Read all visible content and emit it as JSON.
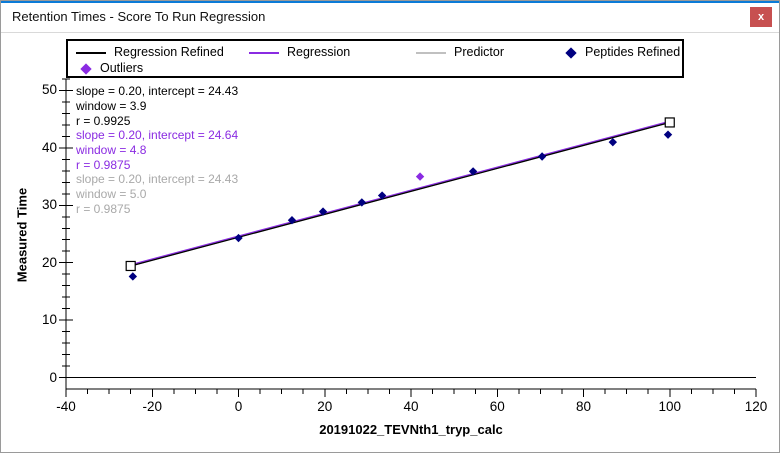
{
  "window": {
    "title": "Retention Times - Score To Run Regression",
    "close_button": "x"
  },
  "colors": {
    "accent": "#0b7bd7",
    "close_red": "#c75050",
    "window_border": "#9a9a9a",
    "regression_refined": "#000000",
    "regression": "#8a2be2",
    "predictor": "#c0c0c0",
    "peptides_refined": "#000080",
    "outliers": "#8a2be2",
    "gray_text": "#a9a9a9"
  },
  "legend": {
    "items": [
      {
        "label": "Regression Refined",
        "marker": "line",
        "color": "#000000"
      },
      {
        "label": "Regression",
        "marker": "line",
        "color": "#8a2be2"
      },
      {
        "label": "Predictor",
        "marker": "line",
        "color": "#c0c0c0"
      },
      {
        "label": "Peptides Refined",
        "marker": "diamond",
        "color": "#000080"
      },
      {
        "label": "Outliers",
        "marker": "diamond",
        "color": "#8a2be2"
      }
    ]
  },
  "annotations": [
    {
      "color": "#000000",
      "lines": [
        "slope = 0.20, intercept = 24.43",
        "window = 3.9",
        "r = 0.9925"
      ]
    },
    {
      "color": "#8a2be2",
      "lines": [
        "slope = 0.20, intercept = 24.64",
        "window = 4.8",
        "r = 0.9875"
      ]
    },
    {
      "color": "#a9a9a9",
      "lines": [
        "slope = 0.20, intercept = 24.43",
        "window = 5.0",
        "r = 0.9875"
      ]
    }
  ],
  "chart_data": {
    "type": "scatter",
    "title": "",
    "xlabel": "20191022_TEVNth1_tryp_calc",
    "ylabel": "Measured Time",
    "xlim": [
      -40,
      120
    ],
    "ylim": [
      -2,
      52
    ],
    "grid": false,
    "legend_position": "top",
    "x_axis": {
      "major_ticks": [
        -40,
        -20,
        0,
        20,
        40,
        60,
        80,
        100,
        120
      ],
      "major_step": 20,
      "minor_step": 5
    },
    "y_axis": {
      "major_ticks": [
        0,
        10,
        20,
        30,
        40,
        50
      ],
      "major_step": 10,
      "minor_step": 2,
      "minor_max": 52
    },
    "series": [
      {
        "name": "Predictor",
        "type": "line",
        "color": "#c0c0c0",
        "slope": 0.2,
        "intercept": 24.43,
        "x_range": [
          -25,
          100
        ],
        "endpoint_marker": "none"
      },
      {
        "name": "Regression",
        "type": "line",
        "color": "#8a2be2",
        "slope": 0.2,
        "intercept": 24.64,
        "x_range": [
          -25,
          100
        ],
        "endpoint_marker": "none"
      },
      {
        "name": "Regression Refined",
        "type": "line",
        "color": "#000000",
        "slope": 0.2,
        "intercept": 24.43,
        "x_range": [
          -25,
          100
        ],
        "endpoint_marker": "square"
      },
      {
        "name": "Peptides Refined",
        "type": "scatter",
        "marker": "diamond",
        "color": "#000080",
        "points": [
          [
            -24.5,
            17.6
          ],
          [
            0,
            24.3
          ],
          [
            12.4,
            27.4
          ],
          [
            19.6,
            28.9
          ],
          [
            28.6,
            30.5
          ],
          [
            33.3,
            31.7
          ],
          [
            54.4,
            35.9
          ],
          [
            70.4,
            38.5
          ],
          [
            86.8,
            41.0
          ],
          [
            99.6,
            42.3
          ]
        ]
      },
      {
        "name": "Outliers",
        "type": "scatter",
        "marker": "diamond",
        "color": "#8a2be2",
        "points": [
          [
            42.1,
            35.0
          ]
        ]
      }
    ]
  }
}
